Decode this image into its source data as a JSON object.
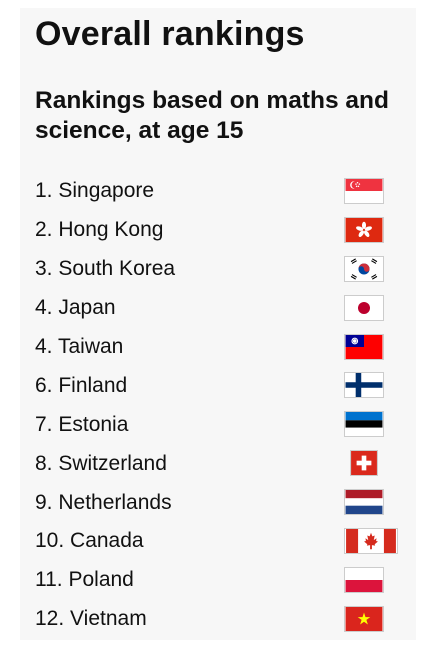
{
  "header": {
    "title": "Overall rankings",
    "subtitle": "Rankings based on maths and science, at age 15"
  },
  "rankings": [
    {
      "label": "1. Singapore",
      "flag": "singapore-flag"
    },
    {
      "label": "2. Hong Kong",
      "flag": "hong-kong-flag"
    },
    {
      "label": "3. South Korea",
      "flag": "south-korea-flag"
    },
    {
      "label": "4. Japan",
      "flag": "japan-flag"
    },
    {
      "label": "4. Taiwan",
      "flag": "taiwan-flag"
    },
    {
      "label": "6. Finland",
      "flag": "finland-flag"
    },
    {
      "label": "7. Estonia",
      "flag": "estonia-flag"
    },
    {
      "label": "8. Switzerland",
      "flag": "switzerland-flag"
    },
    {
      "label": "9. Netherlands",
      "flag": "netherlands-flag"
    },
    {
      "label": "10. Canada",
      "flag": "canada-flag"
    },
    {
      "label": "11. Poland",
      "flag": "poland-flag"
    },
    {
      "label": "12. Vietnam",
      "flag": "vietnam-flag"
    }
  ]
}
